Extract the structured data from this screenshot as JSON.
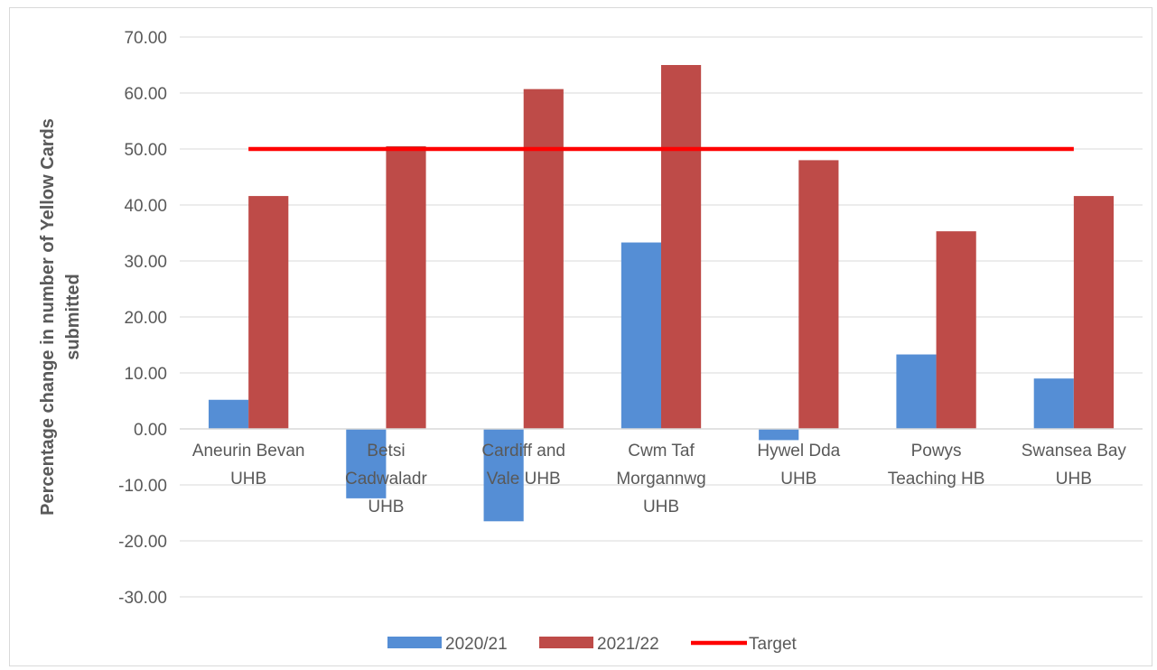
{
  "chart_data": {
    "type": "bar",
    "title": "",
    "ylabel_lines": [
      "Percentage change in number of Yellow Cards",
      "submitted"
    ],
    "xlabel": "",
    "ylim": [
      -30,
      70
    ],
    "ytick_step": 10,
    "ytick_labels": [
      "-30.00",
      "-20.00",
      "-10.00",
      "0.00",
      "10.00",
      "20.00",
      "30.00",
      "40.00",
      "50.00",
      "60.00",
      "70.00"
    ],
    "grid": true,
    "legend_position": "bottom",
    "categories": [
      [
        "Aneurin Bevan",
        "UHB"
      ],
      [
        "Betsi",
        "Cadwaladr",
        "UHB"
      ],
      [
        "Cardiff and",
        "Vale UHB"
      ],
      [
        "Cwm Taf",
        "Morgannwg",
        "UHB"
      ],
      [
        "Hywel Dda",
        "UHB"
      ],
      [
        "Powys",
        "Teaching HB"
      ],
      [
        "Swansea Bay",
        "UHB"
      ]
    ],
    "series": [
      {
        "name": "2020/21",
        "type": "bar",
        "color": "#558ed5",
        "values": [
          5.2,
          -12.4,
          -16.5,
          33.3,
          -2.0,
          13.3,
          9.0
        ]
      },
      {
        "name": "2021/22",
        "type": "bar",
        "color": "#be4b48",
        "values": [
          41.6,
          50.5,
          60.7,
          65.0,
          48.0,
          35.3,
          41.6
        ]
      },
      {
        "name": "Target",
        "type": "line",
        "color": "#ff0000",
        "values": [
          50,
          50,
          50,
          50,
          50,
          50,
          50
        ]
      }
    ]
  }
}
